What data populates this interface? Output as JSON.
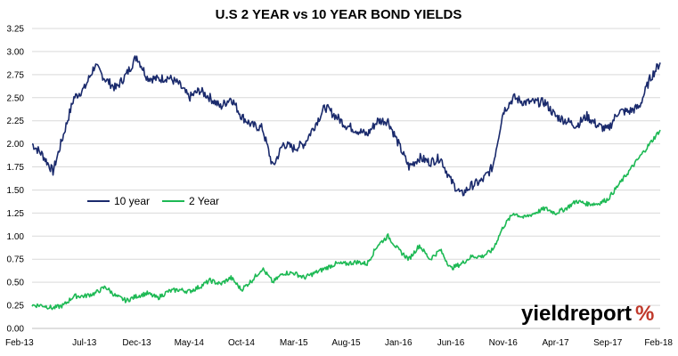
{
  "chart_data": {
    "type": "line",
    "title": "U.S 2 YEAR vs 10 YEAR BOND YIELDS",
    "xlabel": "",
    "ylabel": "",
    "ylim": [
      0,
      3.25
    ],
    "yticks": [
      0.0,
      0.25,
      0.5,
      0.75,
      1.0,
      1.25,
      1.5,
      1.75,
      2.0,
      2.25,
      2.5,
      2.75,
      3.0,
      3.25
    ],
    "ytick_labels": [
      "0.00",
      "0.25",
      "0.50",
      "0.75",
      "1.00",
      "1.25",
      "1.50",
      "1.75",
      "2.00",
      "2.25",
      "2.50",
      "2.75",
      "3.00",
      "3.25"
    ],
    "categories": [
      "Feb-13",
      "Jul-13",
      "Dec-13",
      "May-14",
      "Oct-14",
      "Mar-15",
      "Aug-15",
      "Jan-16",
      "Jun-16",
      "Nov-16",
      "Apr-17",
      "Sep-17",
      "Feb-18"
    ],
    "grid": "horizontal",
    "legend_placement": "left-middle",
    "x": [
      "2013-02",
      "2013-03",
      "2013-04",
      "2013-05",
      "2013-06",
      "2013-07",
      "2013-08",
      "2013-09",
      "2013-10",
      "2013-11",
      "2013-12",
      "2014-01",
      "2014-02",
      "2014-03",
      "2014-04",
      "2014-05",
      "2014-06",
      "2014-07",
      "2014-08",
      "2014-09",
      "2014-10",
      "2014-11",
      "2014-12",
      "2015-01",
      "2015-02",
      "2015-03",
      "2015-04",
      "2015-05",
      "2015-06",
      "2015-07",
      "2015-08",
      "2015-09",
      "2015-10",
      "2015-11",
      "2015-12",
      "2016-01",
      "2016-02",
      "2016-03",
      "2016-04",
      "2016-05",
      "2016-06",
      "2016-07",
      "2016-08",
      "2016-09",
      "2016-10",
      "2016-11",
      "2016-12",
      "2017-01",
      "2017-02",
      "2017-03",
      "2017-04",
      "2017-05",
      "2017-06",
      "2017-07",
      "2017-08",
      "2017-09",
      "2017-10",
      "2017-11",
      "2017-12",
      "2018-01",
      "2018-02"
    ],
    "series": [
      {
        "name": "10 year",
        "color": "#1a2a6c",
        "values": [
          2.0,
          1.88,
          1.7,
          2.1,
          2.5,
          2.6,
          2.85,
          2.7,
          2.6,
          2.75,
          2.95,
          2.72,
          2.7,
          2.72,
          2.65,
          2.5,
          2.58,
          2.5,
          2.4,
          2.5,
          2.3,
          2.2,
          2.17,
          1.75,
          2.0,
          1.95,
          2.0,
          2.2,
          2.4,
          2.3,
          2.2,
          2.15,
          2.1,
          2.25,
          2.25,
          2.0,
          1.75,
          1.85,
          1.8,
          1.85,
          1.6,
          1.45,
          1.55,
          1.6,
          1.75,
          2.35,
          2.5,
          2.45,
          2.45,
          2.45,
          2.3,
          2.25,
          2.2,
          2.3,
          2.2,
          2.15,
          2.35,
          2.35,
          2.4,
          2.7,
          2.88
        ]
      },
      {
        "name": "2 Year",
        "color": "#1db954",
        "values": [
          0.25,
          0.25,
          0.22,
          0.25,
          0.35,
          0.35,
          0.38,
          0.45,
          0.35,
          0.3,
          0.35,
          0.38,
          0.33,
          0.4,
          0.42,
          0.4,
          0.45,
          0.52,
          0.48,
          0.55,
          0.42,
          0.52,
          0.65,
          0.5,
          0.6,
          0.6,
          0.55,
          0.6,
          0.65,
          0.7,
          0.7,
          0.72,
          0.7,
          0.9,
          1.0,
          0.85,
          0.75,
          0.9,
          0.75,
          0.85,
          0.65,
          0.7,
          0.78,
          0.78,
          0.85,
          1.1,
          1.25,
          1.2,
          1.25,
          1.3,
          1.25,
          1.3,
          1.38,
          1.35,
          1.35,
          1.4,
          1.55,
          1.7,
          1.85,
          2.0,
          2.15
        ]
      }
    ]
  },
  "logo": {
    "text_main": "yieldreport",
    "text_pct": "%",
    "color_main": "#000000",
    "color_pct": "#c0392b",
    "color_pct_accent": "#2e9e44"
  }
}
